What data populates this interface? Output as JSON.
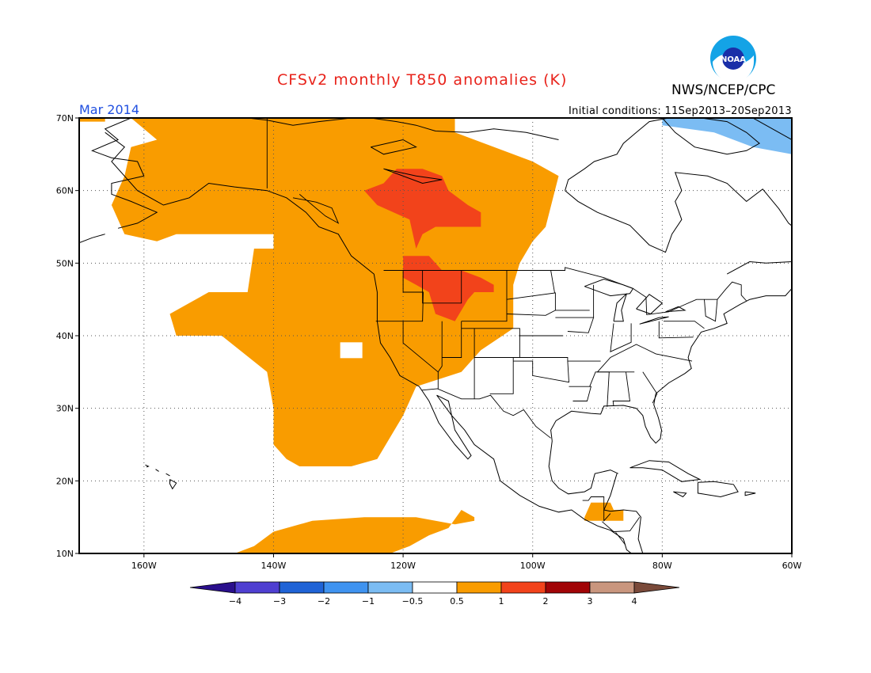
{
  "header": {
    "title": "CFSv2 monthly T850 anomalies (K)",
    "organization": "NWS/NCEP/CPC",
    "period": "Mar 2014",
    "initial_conditions": "Initial conditions: 11Sep2013–20Sep2013",
    "logo_text": "NOAA"
  },
  "colors": {
    "title": "#e8231b",
    "period": "#1f4fe0",
    "land_outline": "#000000",
    "background": "#ffffff"
  },
  "map": {
    "projection": "cylindrical equidistant",
    "lon_range": [
      -170,
      -60
    ],
    "lat_range": [
      10,
      70
    ],
    "lat_labels": [
      "70N",
      "60N",
      "50N",
      "40N",
      "30N",
      "20N",
      "10N"
    ],
    "lat_values": [
      70,
      60,
      50,
      40,
      30,
      20,
      10
    ],
    "lon_labels": [
      "160W",
      "140W",
      "120W",
      "100W",
      "80W",
      "60W"
    ],
    "lon_values": [
      -160,
      -140,
      -120,
      -100,
      -80,
      -60
    ],
    "gridlines": "dotted"
  },
  "legend": {
    "labels": [
      "−4",
      "−3",
      "−2",
      "−1",
      "−0.5",
      "0.5",
      "1",
      "2",
      "3",
      "4"
    ],
    "colors": [
      "#2a0f8c",
      "#4f3fd1",
      "#1f63d6",
      "#3f93f0",
      "#7bbcf3",
      "#ffffff",
      "#f99c00",
      "#f2431b",
      "#a10406",
      "#c9967e",
      "#7a4a3a"
    ]
  },
  "chart_data": {
    "type": "heatmap",
    "title": "CFSv2 monthly T850 anomalies (K)",
    "variable": "T850 anomaly",
    "units": "K",
    "valid_period": "Mar 2014",
    "initial_conditions": "11Sep2013–20Sep2013",
    "regions": [
      {
        "level": "0.5 to 1",
        "color": "#f99c00",
        "polygon_lonlat": [
          [
            -162,
            70
          ],
          [
            -112,
            70
          ],
          [
            -112,
            68
          ],
          [
            -100,
            64
          ],
          [
            -96,
            62
          ],
          [
            -98,
            55
          ],
          [
            -100,
            53
          ],
          [
            -102,
            50
          ],
          [
            -103,
            47
          ],
          [
            -103,
            41
          ],
          [
            -108,
            38
          ],
          [
            -111,
            35
          ],
          [
            -118,
            33
          ],
          [
            -120,
            29
          ],
          [
            -124,
            23
          ],
          [
            -128,
            22
          ],
          [
            -136,
            22
          ],
          [
            -138,
            23
          ],
          [
            -140,
            25
          ],
          [
            -140,
            30
          ],
          [
            -141,
            35
          ],
          [
            -148,
            40
          ],
          [
            -155,
            40
          ],
          [
            -156,
            43
          ],
          [
            -150,
            46
          ],
          [
            -144,
            46
          ],
          [
            -143,
            52
          ],
          [
            -140,
            52
          ],
          [
            -140,
            54
          ],
          [
            -155,
            54
          ],
          [
            -158,
            53
          ],
          [
            -163,
            54
          ],
          [
            -165,
            58
          ],
          [
            -163,
            62
          ],
          [
            -162,
            66
          ],
          [
            -158,
            67
          ]
        ]
      },
      {
        "level": "0.5 to 1",
        "color": "#f99c00",
        "polygon_lonlat": [
          [
            -170,
            70
          ],
          [
            -166,
            70
          ],
          [
            -166,
            69.5
          ],
          [
            -170,
            69.5
          ]
        ]
      },
      {
        "level": "0.5 to 1",
        "color": "#f99c00",
        "polygon_lonlat": [
          [
            -146,
            10
          ],
          [
            -143,
            11
          ],
          [
            -140,
            13
          ],
          [
            -134,
            14.5
          ],
          [
            -126,
            15
          ],
          [
            -118,
            15
          ],
          [
            -112,
            14
          ],
          [
            -109,
            14.5
          ],
          [
            -109,
            15
          ],
          [
            -111,
            16
          ],
          [
            -113,
            13.5
          ],
          [
            -116,
            12.5
          ],
          [
            -119,
            11
          ],
          [
            -122,
            10
          ]
        ]
      },
      {
        "level": "0.5 to 1",
        "color": "#f99c00",
        "polygon_lonlat": [
          [
            -92,
            15
          ],
          [
            -91,
            17
          ],
          [
            -88,
            17
          ],
          [
            -87.5,
            16
          ],
          [
            -86,
            16
          ],
          [
            -86,
            14.5
          ],
          [
            -92,
            14.5
          ]
        ]
      },
      {
        "level": "1 to 2",
        "color": "#f2431b",
        "polygon_lonlat": [
          [
            -123,
            61
          ],
          [
            -121,
            63
          ],
          [
            -117,
            63
          ],
          [
            -114,
            62
          ],
          [
            -113,
            60
          ],
          [
            -110,
            58
          ],
          [
            -108,
            57
          ],
          [
            -108,
            55
          ],
          [
            -115,
            55
          ],
          [
            -117,
            54
          ],
          [
            -118,
            52
          ],
          [
            -119,
            56
          ],
          [
            -124,
            58
          ],
          [
            -126,
            60
          ]
        ]
      },
      {
        "level": "1 to 2",
        "color": "#f2431b",
        "polygon_lonlat": [
          [
            -120,
            51
          ],
          [
            -116,
            51
          ],
          [
            -114,
            49
          ],
          [
            -111,
            49
          ],
          [
            -108,
            48
          ],
          [
            -106,
            47
          ],
          [
            -106,
            46
          ],
          [
            -109,
            46
          ],
          [
            -110,
            45
          ],
          [
            -112,
            42
          ],
          [
            -115,
            43
          ],
          [
            -116,
            46
          ],
          [
            -118,
            47
          ],
          [
            -120,
            48
          ]
        ]
      }
    ],
    "cold_anomaly_region": {
      "level": "-1 to -0.5",
      "color": "#7bbcf3",
      "location": "NE Canada / Baffin Island",
      "polygon_lonlat": [
        [
          -80,
          70
        ],
        [
          -60,
          70
        ],
        [
          -60,
          65
        ],
        [
          -66,
          66
        ],
        [
          -72,
          68
        ],
        [
          -80,
          69
        ]
      ]
    },
    "hole": {
      "location": "Pacific near 130W 38N",
      "lonlat": [
        -128,
        38
      ]
    },
    "colorbar": {
      "boundaries": [
        -4,
        -3,
        -2,
        -1,
        -0.5,
        0.5,
        1,
        2,
        3,
        4
      ],
      "extend": "both"
    }
  }
}
